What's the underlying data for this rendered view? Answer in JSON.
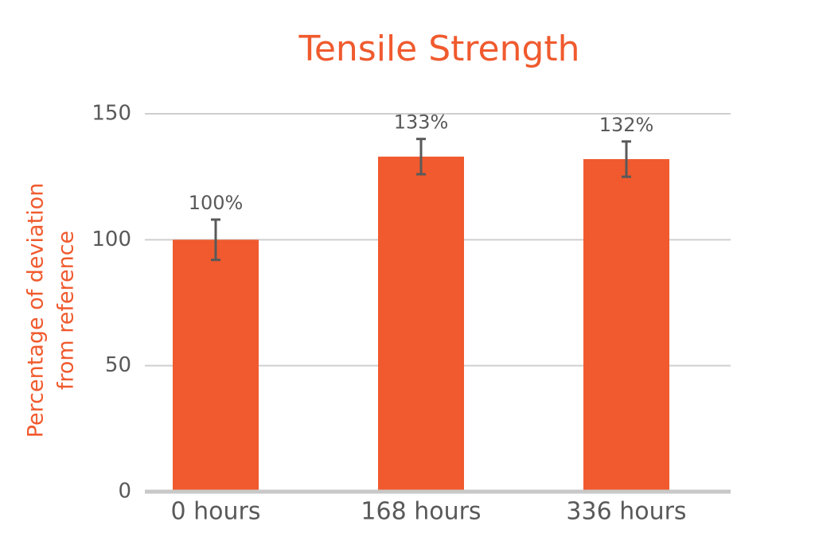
{
  "chart_data": {
    "type": "bar",
    "title": "Tensile Strength",
    "ylabel": [
      "Percentage of deviation",
      "from reference"
    ],
    "categories": [
      "0 hours",
      "168 hours",
      "336 hours"
    ],
    "values": [
      100,
      133,
      132
    ],
    "value_labels": [
      "100%",
      "133%",
      "132%"
    ],
    "errors": [
      8,
      7,
      7
    ],
    "color": "#f05a2e",
    "ylim": [
      0,
      150
    ],
    "yticks": [
      0,
      50,
      100,
      150
    ],
    "grid": true
  }
}
